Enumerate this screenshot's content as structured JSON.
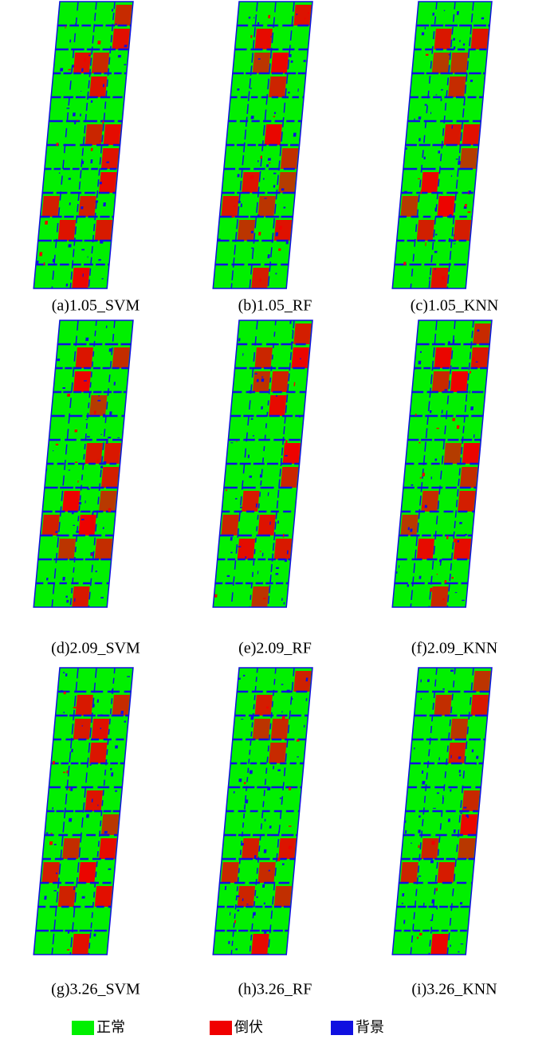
{
  "panels": [
    {
      "caption": "(a)1.05_SVM"
    },
    {
      "caption": "(b)1.05_RF"
    },
    {
      "caption": "(c)1.05_KNN"
    },
    {
      "caption": "(d)2.09_SVM"
    },
    {
      "caption": "(e)2.09_RF"
    },
    {
      "caption": "(f)2.09_KNN"
    },
    {
      "caption": "(g)3.26_SVM"
    },
    {
      "caption": "(h)3.26_RF"
    },
    {
      "caption": "(i)3.26_KNN"
    }
  ],
  "legend": [
    {
      "label": "正常",
      "color": "#00f000"
    },
    {
      "label": "倒伏",
      "color": "#f00000"
    },
    {
      "label": "背景",
      "color": "#1010e0"
    }
  ]
}
